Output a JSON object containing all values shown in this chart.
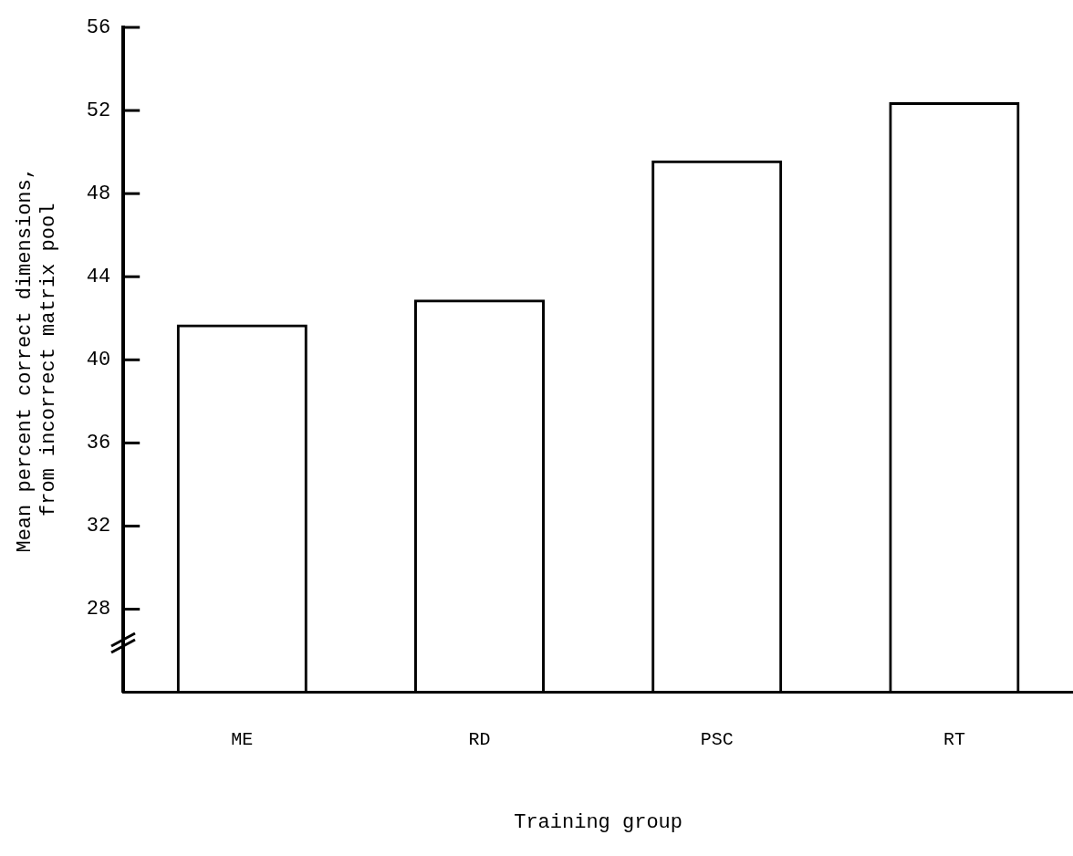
{
  "chart_data": {
    "type": "bar",
    "xlabel": "Training group",
    "ylabel": "Mean percent correct dimensions,\nfrom incorrect matrix pool",
    "categories": [
      "ME",
      "RD",
      "PSC",
      "RT"
    ],
    "values": [
      41.7,
      42.9,
      49.6,
      52.4
    ],
    "color": "#000000",
    "ylim": [
      24,
      56
    ],
    "yticks": [
      28,
      32,
      36,
      40,
      44,
      48,
      52,
      56
    ],
    "grid": false,
    "legend": false
  }
}
